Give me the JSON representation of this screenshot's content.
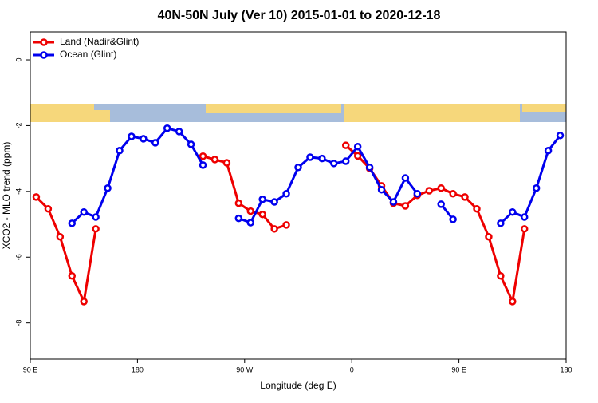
{
  "chart_data": {
    "type": "line",
    "title": "40N-50N July (Ver 10)   2015-01-01 to 2020-12-18",
    "x_label": "Longitude (deg E)",
    "y_label": "XCO2 - MLO trend (ppm)",
    "x": [
      95,
      105,
      115,
      125,
      135,
      145,
      155,
      165,
      175,
      185,
      195,
      205,
      215,
      225,
      235,
      245,
      255,
      265,
      275,
      285,
      295,
      305,
      315,
      325,
      335,
      345,
      355,
      365,
      375,
      385,
      395,
      405,
      415,
      425,
      435,
      445,
      455,
      465,
      475,
      485,
      495,
      505,
      515,
      525,
      535
    ],
    "series": [
      {
        "name": "Land (Nadir&Glint)",
        "color": "#ee0000",
        "values": [
          -4.17,
          -4.53,
          -5.38,
          -6.57,
          -7.35,
          -5.14,
          null,
          null,
          null,
          null,
          null,
          null,
          null,
          null,
          -2.93,
          -3.03,
          -3.13,
          -4.36,
          -4.6,
          -4.7,
          -5.14,
          -5.02,
          null,
          null,
          null,
          null,
          -2.6,
          -2.92,
          -3.3,
          -3.83,
          -4.36,
          -4.44,
          -4.12,
          -3.98,
          -3.9,
          -4.07,
          -4.17,
          -4.53,
          -5.38,
          -6.57,
          -7.35,
          -5.14,
          null,
          null,
          null
        ]
      },
      {
        "name": "Ocean (Glint)",
        "color": "#0000ee",
        "values": [
          null,
          null,
          null,
          -4.97,
          -4.63,
          -4.78,
          -3.9,
          -2.76,
          -2.33,
          -2.4,
          -2.52,
          -2.08,
          -2.18,
          -2.57,
          -3.2,
          null,
          null,
          -4.82,
          -4.95,
          -4.24,
          -4.32,
          -4.07,
          -3.27,
          -2.96,
          -3.0,
          -3.15,
          -3.08,
          -2.64,
          -3.27,
          -3.95,
          -4.32,
          -3.59,
          -4.07,
          null,
          -4.39,
          -4.85,
          null,
          null,
          null,
          -4.97,
          -4.63,
          -4.78,
          -3.9,
          -2.76,
          -2.3
        ]
      }
    ],
    "xlim": [
      90,
      540
    ],
    "xticks": [
      {
        "value": 90,
        "label": "90 E"
      },
      {
        "value": 180,
        "label": "180"
      },
      {
        "value": 270,
        "label": "90 W"
      },
      {
        "value": 360,
        "label": "0"
      },
      {
        "value": 450,
        "label": "90 E"
      },
      {
        "value": 540,
        "label": "180"
      }
    ],
    "ylim": [
      -9.1,
      0.85
    ],
    "yticks": [
      0,
      -2,
      -4,
      -6,
      -8
    ],
    "legend": "top-left"
  }
}
